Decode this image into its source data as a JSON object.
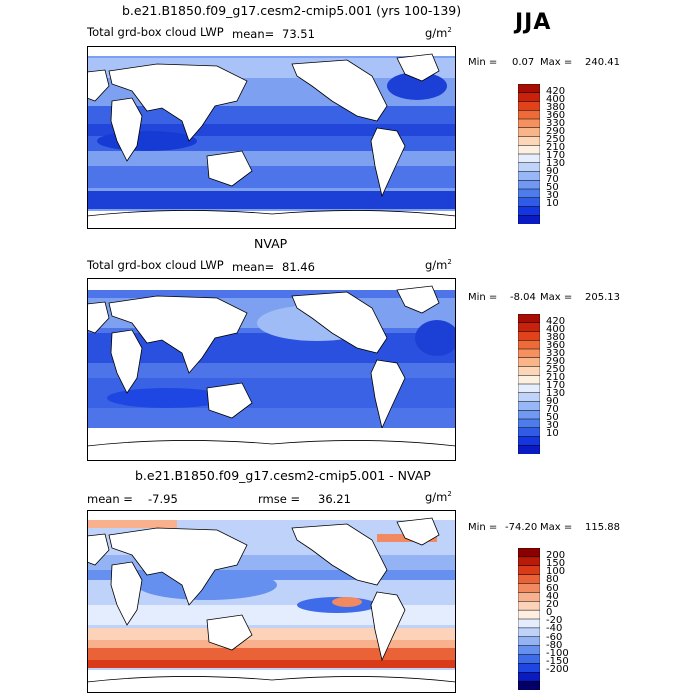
{
  "season": "JJA",
  "units": "g/m",
  "units_sup": "2",
  "colors": {
    "seq": [
      "#020066",
      "#0a1bc4",
      "#1436e0",
      "#2f5be6",
      "#4d7ded",
      "#7199f2",
      "#98b7f6",
      "#c0d4fa",
      "#e6eefd",
      "#fdf0e0",
      "#fcd6b6",
      "#f9b58a",
      "#f5905f",
      "#ee6a39",
      "#e0431c",
      "#c7230c",
      "#a60d04",
      "#7a0000"
    ],
    "diff": [
      "#020066",
      "#0a1bc4",
      "#1e46e2",
      "#3d6be9",
      "#6690ef",
      "#93b3f4",
      "#bfd2fa",
      "#e4edfd",
      "#fdeee0",
      "#fcd3b8",
      "#f8b08d",
      "#f28a61",
      "#ea6238",
      "#d93a17",
      "#ba1b08",
      "#8a0000"
    ]
  },
  "panels": [
    {
      "title": "b.e21.B1850.f09_g17.cesm2-cmip5.001 (yrs 100-139)",
      "left_label": "Total grd-box cloud LWP",
      "mean_label": "mean=",
      "mean_value": "73.51",
      "min_label": "Min =",
      "min_value": "0.07",
      "max_label": "Max =",
      "max_value": "240.41",
      "levels": [
        "420",
        "400",
        "380",
        "360",
        "330",
        "290",
        "250",
        "210",
        "170",
        "130",
        "90",
        "70",
        "50",
        "30",
        "10"
      ]
    },
    {
      "title": "NVAP",
      "left_label": "Total grd-box cloud LWP",
      "mean_label": "mean=",
      "mean_value": "81.46",
      "min_label": "Min =",
      "min_value": "-8.04",
      "max_label": "Max =",
      "max_value": "205.13",
      "levels": [
        "420",
        "400",
        "380",
        "360",
        "330",
        "290",
        "250",
        "210",
        "170",
        "130",
        "90",
        "70",
        "50",
        "30",
        "10"
      ]
    },
    {
      "title": "b.e21.B1850.f09_g17.cesm2-cmip5.001 - NVAP",
      "mean_label": "mean =",
      "mean_value": "-7.95",
      "rmse_label": "rmse =",
      "rmse_value": "36.21",
      "min_label": "Min =",
      "min_value": "-74.20",
      "max_label": "Max =",
      "max_value": "115.88",
      "levels": [
        "200",
        "150",
        "100",
        "80",
        "60",
        "40",
        "20",
        "0",
        "-20",
        "-40",
        "-60",
        "-80",
        "-100",
        "-150",
        "-200"
      ]
    }
  ],
  "chart_data": {
    "type": "heatmap",
    "region": "global",
    "colorbar_levels_fields": [
      10,
      30,
      50,
      70,
      90,
      130,
      170,
      210,
      250,
      290,
      330,
      360,
      380,
      400,
      420
    ],
    "colorbar_levels_diff": [
      -200,
      -150,
      -100,
      -80,
      -60,
      -40,
      -20,
      0,
      20,
      40,
      60,
      80,
      100,
      150,
      200
    ]
  }
}
